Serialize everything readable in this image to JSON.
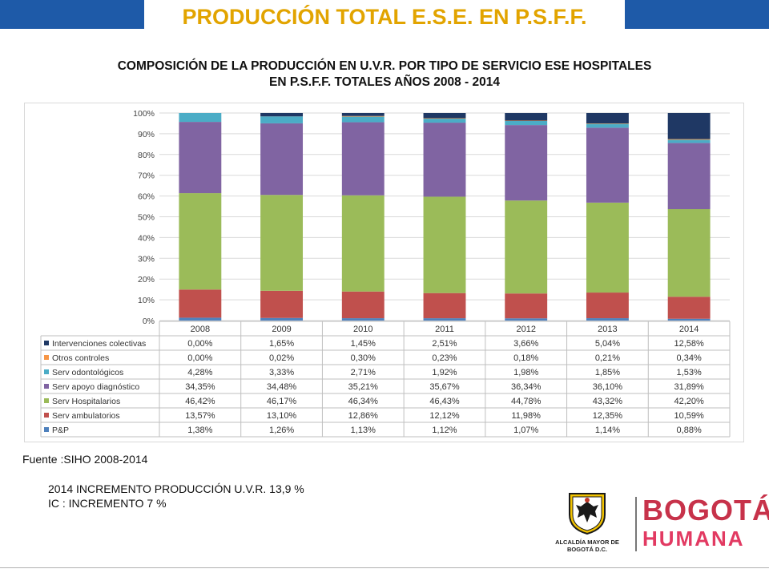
{
  "header": {
    "title": "PRODUCCIÓN  TOTAL E.S.E.  EN P.S.F.F."
  },
  "chart_data": {
    "type": "bar",
    "stacked": true,
    "title": "COMPOSICIÓN DE LA PRODUCCIÓN EN U.V.R. POR TIPO DE SERVICIO ESE HOSPITALES EN P.S.F.F. TOTALES AÑOS  2008 - 2014",
    "title_lines": [
      "COMPOSICIÓN DE LA PRODUCCIÓN EN U.V.R. POR TIPO DE SERVICIO ESE HOSPITALES",
      "EN P.S.F.F. TOTALES AÑOS  2008 - 2014"
    ],
    "categories": [
      "2008",
      "2009",
      "2010",
      "2011",
      "2012",
      "2013",
      "2014"
    ],
    "ylim": [
      0,
      100
    ],
    "y_ticks": [
      "0%",
      "10%",
      "20%",
      "30%",
      "40%",
      "50%",
      "60%",
      "70%",
      "80%",
      "90%",
      "100%"
    ],
    "grid": true,
    "legend": "data-table",
    "series": [
      {
        "name": "P&P",
        "color": "#4f81bd",
        "values": [
          1.38,
          1.26,
          1.13,
          1.12,
          1.07,
          1.14,
          0.88
        ],
        "labels": [
          "1,38%",
          "1,26%",
          "1,13%",
          "1,12%",
          "1,07%",
          "1,14%",
          "0,88%"
        ]
      },
      {
        "name": "Serv ambulatorios",
        "color": "#c0504d",
        "values": [
          13.57,
          13.1,
          12.86,
          12.12,
          11.98,
          12.35,
          10.59
        ],
        "labels": [
          "13,57%",
          "13,10%",
          "12,86%",
          "12,12%",
          "11,98%",
          "12,35%",
          "10,59%"
        ]
      },
      {
        "name": "Serv Hospitalarios",
        "color": "#9bbb59",
        "values": [
          46.42,
          46.17,
          46.34,
          46.43,
          44.78,
          43.32,
          42.2
        ],
        "labels": [
          "46,42%",
          "46,17%",
          "46,34%",
          "46,43%",
          "44,78%",
          "43,32%",
          "42,20%"
        ]
      },
      {
        "name": "Serv apoyo diagnóstico",
        "color": "#8064a2",
        "values": [
          34.35,
          34.48,
          35.21,
          35.67,
          36.34,
          36.1,
          31.89
        ],
        "labels": [
          "34,35%",
          "34,48%",
          "35,21%",
          "35,67%",
          "36,34%",
          "36,10%",
          "31,89%"
        ]
      },
      {
        "name": "Serv odontológicos",
        "color": "#4bacc6",
        "values": [
          4.28,
          3.33,
          2.71,
          1.92,
          1.98,
          1.85,
          1.53
        ],
        "labels": [
          "4,28%",
          "3,33%",
          "2,71%",
          "1,92%",
          "1,98%",
          "1,85%",
          "1,53%"
        ]
      },
      {
        "name": "Otros controles",
        "color": "#f79646",
        "values": [
          0.0,
          0.02,
          0.3,
          0.23,
          0.18,
          0.21,
          0.34
        ],
        "labels": [
          "0,00%",
          "0,02%",
          "0,30%",
          "0,23%",
          "0,18%",
          "0,21%",
          "0,34%"
        ]
      },
      {
        "name": "Intervenciones colectivas",
        "color": "#1f3864",
        "values": [
          0.0,
          1.65,
          1.45,
          2.51,
          3.66,
          5.04,
          12.58
        ],
        "labels": [
          "0,00%",
          "1,65%",
          "1,45%",
          "2,51%",
          "3,66%",
          "5,04%",
          "12,58%"
        ]
      }
    ]
  },
  "footer": {
    "source": "Fuente :SIHO 2008-2014",
    "note_line1": "2014 INCREMENTO PRODUCCIÓN U.V.R.  13,9 %",
    "note_line2": "IC : INCREMENTO 7 %"
  },
  "logos": {
    "alcaldia_caption": "ALCALDÍA MAYOR DE BOGOTÁ D.C.",
    "brand_word1": "BOGOTÁ",
    "brand_word2": "HUMANA"
  }
}
